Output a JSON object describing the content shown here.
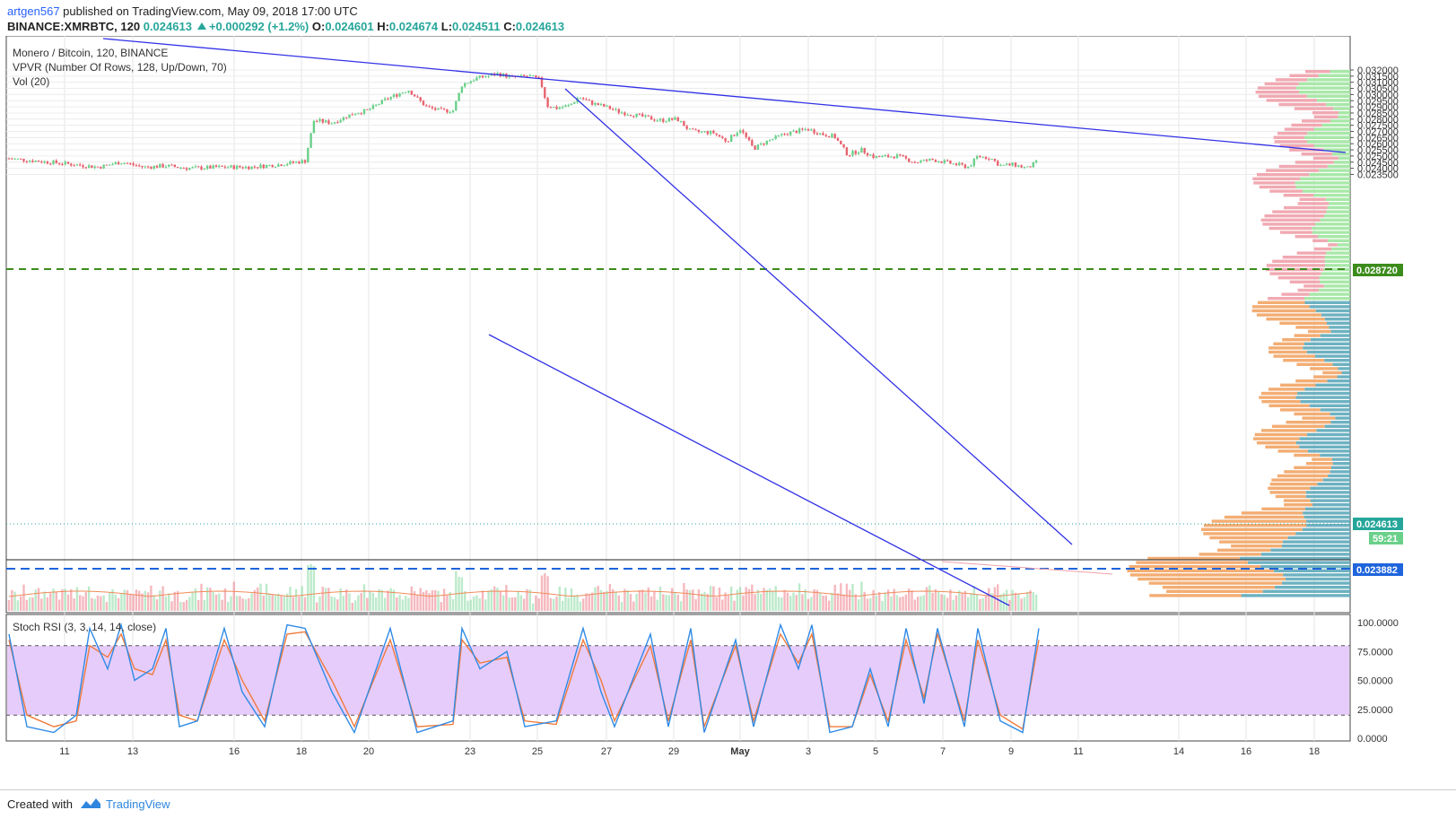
{
  "header": {
    "user": "artgen567",
    "published": " published on TradingView.com, May 09, 2018 17:00 UTC",
    "symbol": "BINANCE:XMRBTC, 120",
    "last": "0.024613",
    "change": "+0.000292 (+1.2%)",
    "o_label": "O:",
    "o": "0.024601",
    "h_label": "H:",
    "h": "0.024674",
    "l_label": "L:",
    "l": "0.024511",
    "c_label": "C:",
    "c": "0.024613"
  },
  "legend": {
    "title": "Monero / Bitcoin, 120, BINANCE",
    "vpvr": "VPVR (Number Of Rows, 128, Up/Down, 70)",
    "vol": "Vol (20)",
    "stoch": "Stoch RSI (3, 3, 14, 14, close)"
  },
  "footer": {
    "created": "Created with",
    "brand": "TradingView"
  },
  "colors": {
    "up": "#6ad08a",
    "down": "#e8626e",
    "trend": "#3232e6",
    "dash_green": "#3c8c1c",
    "dash_blue": "#1e64dc",
    "stoch_k": "#2e8ae6",
    "stoch_d": "#f07a3c",
    "stoch_band": "#e6ccfa",
    "vp_up": "#5da9ba",
    "vp_down": "#f2a464",
    "vp_up_hi": "#9ee69e",
    "vp_down_hi": "#f0a0aa"
  },
  "chart_data": {
    "type": "candlestick",
    "title": "Monero / Bitcoin, 120, BINANCE",
    "x_ticks": [
      "11",
      "13",
      "16",
      "18",
      "20",
      "23",
      "25",
      "27",
      "29",
      "May",
      "3",
      "5",
      "7",
      "9",
      "11",
      "14",
      "16",
      "18"
    ],
    "y_ticks": [
      "0.032000",
      "0.031500",
      "0.031000",
      "0.030500",
      "0.030000",
      "0.029500",
      "0.029000",
      "0.028500",
      "0.028000",
      "0.027500",
      "0.027000",
      "0.026500",
      "0.026000",
      "0.025500",
      "0.025000",
      "0.024500",
      "0.024000",
      "0.023500"
    ],
    "ylim": [
      0.0232,
      0.0322
    ],
    "price_labels": {
      "green_level": "0.028720",
      "last_price": "0.024613",
      "countdown": "59:21",
      "blue_level": "0.023882"
    },
    "close_points": [
      [
        0,
        0.0248
      ],
      [
        60,
        0.0244
      ],
      [
        100,
        0.0241
      ],
      [
        125,
        0.0245
      ],
      [
        150,
        0.0241
      ],
      [
        175,
        0.0242
      ],
      [
        200,
        0.024
      ],
      [
        240,
        0.0241
      ],
      [
        270,
        0.0241
      ],
      [
        300,
        0.0243
      ],
      [
        330,
        0.0246
      ],
      [
        340,
        0.0279
      ],
      [
        360,
        0.0277
      ],
      [
        385,
        0.0285
      ],
      [
        400,
        0.0287
      ],
      [
        420,
        0.0296
      ],
      [
        445,
        0.0304
      ],
      [
        465,
        0.029
      ],
      [
        480,
        0.0287
      ],
      [
        495,
        0.0287
      ],
      [
        505,
        0.0308
      ],
      [
        520,
        0.0313
      ],
      [
        545,
        0.0317
      ],
      [
        560,
        0.0314
      ],
      [
        580,
        0.0315
      ],
      [
        592,
        0.0312
      ],
      [
        600,
        0.0291
      ],
      [
        610,
        0.0289
      ],
      [
        625,
        0.0291
      ],
      [
        635,
        0.0298
      ],
      [
        650,
        0.0293
      ],
      [
        665,
        0.029
      ],
      [
        680,
        0.0286
      ],
      [
        700,
        0.0283
      ],
      [
        725,
        0.0279
      ],
      [
        745,
        0.028
      ],
      [
        760,
        0.027
      ],
      [
        785,
        0.0269
      ],
      [
        800,
        0.0262
      ],
      [
        815,
        0.0272
      ],
      [
        830,
        0.0256
      ],
      [
        845,
        0.0262
      ],
      [
        865,
        0.0268
      ],
      [
        890,
        0.0272
      ],
      [
        905,
        0.0268
      ],
      [
        920,
        0.0266
      ],
      [
        935,
        0.0251
      ],
      [
        950,
        0.0255
      ],
      [
        965,
        0.0249
      ],
      [
        990,
        0.025
      ],
      [
        1010,
        0.0245
      ],
      [
        1030,
        0.0247
      ],
      [
        1050,
        0.0244
      ],
      [
        1070,
        0.0241
      ],
      [
        1080,
        0.025
      ],
      [
        1095,
        0.0248
      ],
      [
        1105,
        0.0242
      ],
      [
        1120,
        0.0243
      ],
      [
        1135,
        0.024
      ],
      [
        1148,
        0.0246
      ]
    ],
    "stoch_k": [
      [
        0,
        90
      ],
      [
        20,
        10
      ],
      [
        50,
        5
      ],
      [
        75,
        20
      ],
      [
        90,
        95
      ],
      [
        110,
        60
      ],
      [
        125,
        98
      ],
      [
        140,
        50
      ],
      [
        160,
        60
      ],
      [
        175,
        95
      ],
      [
        190,
        10
      ],
      [
        210,
        15
      ],
      [
        240,
        95
      ],
      [
        260,
        40
      ],
      [
        285,
        10
      ],
      [
        310,
        98
      ],
      [
        330,
        95
      ],
      [
        360,
        40
      ],
      [
        385,
        5
      ],
      [
        425,
        95
      ],
      [
        455,
        5
      ],
      [
        495,
        15
      ],
      [
        505,
        95
      ],
      [
        525,
        60
      ],
      [
        555,
        75
      ],
      [
        575,
        10
      ],
      [
        610,
        15
      ],
      [
        640,
        95
      ],
      [
        660,
        40
      ],
      [
        675,
        10
      ],
      [
        715,
        90
      ],
      [
        735,
        10
      ],
      [
        760,
        95
      ],
      [
        775,
        5
      ],
      [
        810,
        85
      ],
      [
        830,
        10
      ],
      [
        860,
        98
      ],
      [
        880,
        60
      ],
      [
        895,
        98
      ],
      [
        915,
        5
      ],
      [
        940,
        10
      ],
      [
        960,
        60
      ],
      [
        980,
        10
      ],
      [
        1000,
        95
      ],
      [
        1020,
        30
      ],
      [
        1035,
        95
      ],
      [
        1065,
        10
      ],
      [
        1080,
        95
      ],
      [
        1105,
        15
      ],
      [
        1130,
        5
      ],
      [
        1148,
        95
      ]
    ],
    "stoch_d": [
      [
        0,
        85
      ],
      [
        20,
        20
      ],
      [
        50,
        10
      ],
      [
        75,
        15
      ],
      [
        90,
        80
      ],
      [
        110,
        70
      ],
      [
        125,
        90
      ],
      [
        140,
        60
      ],
      [
        160,
        55
      ],
      [
        175,
        85
      ],
      [
        190,
        20
      ],
      [
        210,
        15
      ],
      [
        240,
        85
      ],
      [
        260,
        50
      ],
      [
        285,
        15
      ],
      [
        310,
        90
      ],
      [
        330,
        92
      ],
      [
        360,
        50
      ],
      [
        385,
        10
      ],
      [
        425,
        85
      ],
      [
        455,
        10
      ],
      [
        495,
        12
      ],
      [
        505,
        85
      ],
      [
        525,
        65
      ],
      [
        555,
        70
      ],
      [
        575,
        15
      ],
      [
        610,
        12
      ],
      [
        640,
        85
      ],
      [
        660,
        50
      ],
      [
        675,
        15
      ],
      [
        715,
        80
      ],
      [
        735,
        15
      ],
      [
        760,
        85
      ],
      [
        775,
        10
      ],
      [
        810,
        80
      ],
      [
        830,
        15
      ],
      [
        860,
        90
      ],
      [
        880,
        65
      ],
      [
        895,
        90
      ],
      [
        915,
        10
      ],
      [
        940,
        10
      ],
      [
        960,
        55
      ],
      [
        980,
        15
      ],
      [
        1000,
        85
      ],
      [
        1020,
        35
      ],
      [
        1035,
        90
      ],
      [
        1065,
        15
      ],
      [
        1080,
        85
      ],
      [
        1105,
        20
      ],
      [
        1130,
        8
      ],
      [
        1148,
        85
      ]
    ],
    "stoch_ticks": [
      "100.0000",
      "75.0000",
      "50.0000",
      "25.0000",
      "0.0000"
    ]
  }
}
